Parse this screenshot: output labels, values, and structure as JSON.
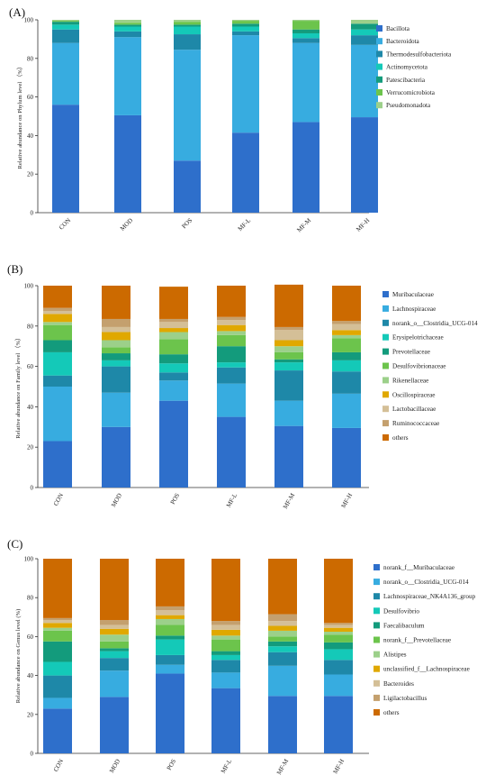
{
  "colors": {
    "blue_dark": "#2e6fcb",
    "blue_light": "#37ace0",
    "teal_blue": "#1e88a8",
    "cyan": "#14c9b8",
    "teal_green": "#139b7c",
    "green": "#6cc44c",
    "light_green": "#9cd08a",
    "gold": "#e0a800",
    "tan": "#d4bf97",
    "khaki": "#c4a06e",
    "orange": "#cc6a00"
  },
  "chart_data": [
    {
      "panel": "(A)",
      "type": "bar",
      "stacked": true,
      "ylabel": "Relative abundance on Phylum level （%）",
      "ylim": [
        0,
        100
      ],
      "yticks": [
        0,
        20,
        40,
        60,
        80,
        100
      ],
      "categories": [
        "CON",
        "MOD",
        "POS",
        "MF-L",
        "MF-M",
        "MF-H"
      ],
      "legend_position": "right",
      "series": [
        {
          "name": "Bacillota",
          "color": "#2e6fcb",
          "values": [
            56,
            50.5,
            27,
            41.5,
            47,
            49.5
          ]
        },
        {
          "name": "Bacteroidota",
          "color": "#37ace0",
          "values": [
            32,
            40.5,
            57.5,
            50.5,
            41,
            37.5
          ]
        },
        {
          "name": "Thermodesulfobacteriota",
          "color": "#1e88a8",
          "values": [
            7,
            3,
            8,
            2,
            2.5,
            5
          ]
        },
        {
          "name": "Actinomycetota",
          "color": "#14c9b8",
          "values": [
            2.5,
            2.5,
            4,
            2.5,
            2.5,
            3
          ]
        },
        {
          "name": "Patescibacteria",
          "color": "#139b7c",
          "values": [
            1.5,
            1,
            1,
            1.5,
            2,
            3
          ]
        },
        {
          "name": "Verrucomicrobiota",
          "color": "#6cc44c",
          "values": [
            0.5,
            1,
            1.5,
            1.5,
            4.5,
            0
          ]
        },
        {
          "name": "Pseudomonadota",
          "color": "#9cd08a",
          "values": [
            0.5,
            1.5,
            1,
            0.5,
            0.5,
            2
          ]
        }
      ]
    },
    {
      "panel": "(B)",
      "type": "bar",
      "stacked": true,
      "ylabel": "Relative abundance on Family level （%）",
      "ylim": [
        0,
        100
      ],
      "yticks": [
        0,
        20,
        40,
        60,
        80,
        100
      ],
      "categories": [
        "CON",
        "MOD",
        "POS",
        "MF-L",
        "MF-M",
        "MF-H"
      ],
      "legend_position": "right",
      "series": [
        {
          "name": "Muribaculaceae",
          "color": "#2e6fcb",
          "values": [
            23,
            30,
            43,
            35,
            30.5,
            29.5
          ]
        },
        {
          "name": "Lachnospiraceae",
          "color": "#37ace0",
          "values": [
            27,
            17,
            10,
            16.5,
            12.5,
            17
          ]
        },
        {
          "name": "norank_o__Clostridia_UCG-014",
          "color": "#1e88a8",
          "values": [
            5.5,
            13,
            4,
            8,
            15,
            11
          ]
        },
        {
          "name": "Erysipelotrichaceae",
          "color": "#14c9b8",
          "values": [
            11.5,
            3,
            4.5,
            2.5,
            4,
            5.5
          ]
        },
        {
          "name": "Prevotellaceae",
          "color": "#139b7c",
          "values": [
            6,
            3.5,
            4.5,
            8,
            1.5,
            4
          ]
        },
        {
          "name": "Desulfovibrionaceae",
          "color": "#6cc44c",
          "values": [
            7.5,
            3,
            7.5,
            5.5,
            3.5,
            7
          ]
        },
        {
          "name": "Rikenellaceae",
          "color": "#9cd08a",
          "values": [
            1.5,
            3.5,
            3.5,
            2,
            3,
            1.5
          ]
        },
        {
          "name": "Oscillospiraceae",
          "color": "#e0a800",
          "values": [
            4,
            4,
            2,
            3,
            3,
            2.5
          ]
        },
        {
          "name": "Lactobacillaceae",
          "color": "#d4bf97",
          "values": [
            1.5,
            2.5,
            3,
            2.5,
            5,
            3
          ]
        },
        {
          "name": "Ruminococcaceae",
          "color": "#c4a06e",
          "values": [
            1.5,
            4,
            1.5,
            1.5,
            1.5,
            1.5
          ]
        },
        {
          "name": "others",
          "color": "#cc6a00",
          "values": [
            11,
            16.5,
            16,
            15.5,
            21,
            17.5
          ]
        }
      ]
    },
    {
      "panel": "(C)",
      "type": "bar",
      "stacked": true,
      "ylabel": "Relative abundance on Genus level (%)",
      "ylim": [
        0,
        100
      ],
      "yticks": [
        0,
        20,
        40,
        60,
        80,
        100
      ],
      "categories": [
        "CON",
        "MOD",
        "POS",
        "MF-L",
        "MF-M",
        "MF-H"
      ],
      "legend_position": "right",
      "series": [
        {
          "name": "norank_f__Muribaculaceae",
          "color": "#2e6fcb",
          "values": [
            23,
            29,
            41,
            33.5,
            29.5,
            29.5
          ]
        },
        {
          "name": "norank_o__Clostridia_UCG-014",
          "color": "#37ace0",
          "values": [
            5.5,
            13.5,
            4.5,
            8,
            15.5,
            11
          ]
        },
        {
          "name": "Lachnospiraceae_NK4A136_group",
          "color": "#1e88a8",
          "values": [
            11.5,
            6.5,
            5,
            6.5,
            7,
            7.5
          ]
        },
        {
          "name": "Desulfovibrio",
          "color": "#14c9b8",
          "values": [
            7,
            3.5,
            8,
            2.5,
            3,
            5.5
          ]
        },
        {
          "name": "Faecalibaculum",
          "color": "#139b7c",
          "values": [
            10.5,
            1.5,
            2,
            2,
            2.5,
            3.5
          ]
        },
        {
          "name": "norank_f__Prevotellaceae",
          "color": "#6cc44c",
          "values": [
            5.5,
            3.5,
            5.5,
            6,
            2.5,
            4
          ]
        },
        {
          "name": "Alistipes",
          "color": "#9cd08a",
          "values": [
            1.5,
            3.5,
            3,
            2,
            3,
            1.5
          ]
        },
        {
          "name": "unclassified_f__Lachnospiraceae",
          "color": "#e0a800",
          "values": [
            2.5,
            3,
            2,
            3,
            2.5,
            2
          ]
        },
        {
          "name": "Bacteroides",
          "color": "#d4bf97",
          "values": [
            1.5,
            2,
            2.5,
            2.5,
            2.5,
            1.5
          ]
        },
        {
          "name": "Ligilactobacillus",
          "color": "#c4a06e",
          "values": [
            1,
            2.5,
            2,
            2,
            3.5,
            1
          ]
        },
        {
          "name": "others",
          "color": "#cc6a00",
          "values": [
            30.5,
            31.5,
            24.5,
            32,
            28.5,
            33
          ]
        }
      ]
    }
  ]
}
